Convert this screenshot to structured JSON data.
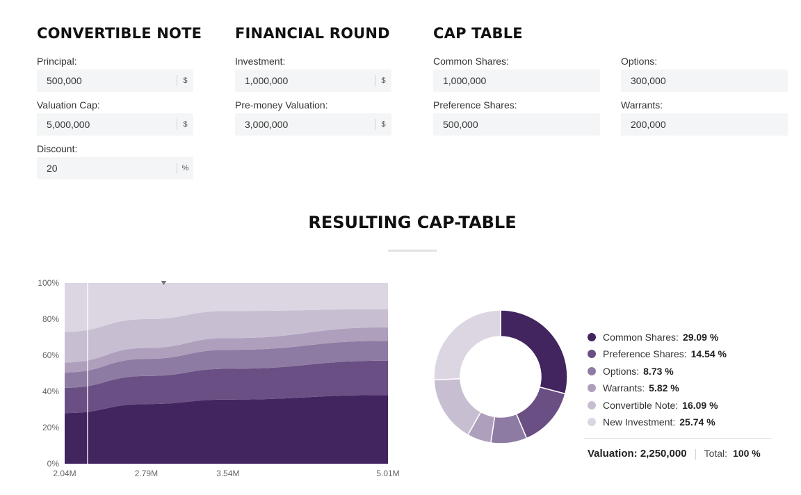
{
  "sections": {
    "convertible_note": {
      "title": "CONVERTIBLE NOTE",
      "principal": {
        "label": "Principal:",
        "value": "500,000",
        "unit": "$"
      },
      "valuation_cap": {
        "label": "Valuation Cap:",
        "value": "5,000,000",
        "unit": "$"
      },
      "discount": {
        "label": "Discount:",
        "value": "20",
        "unit": "%"
      }
    },
    "financial_round": {
      "title": "FINANCIAL ROUND",
      "investment": {
        "label": "Investment:",
        "value": "1,000,000",
        "unit": "$"
      },
      "pre_money": {
        "label": "Pre-money Valuation:",
        "value": "3,000,000",
        "unit": "$"
      }
    },
    "cap_table": {
      "title": "CAP TABLE",
      "common": {
        "label": "Common Shares:",
        "value": "1,000,000"
      },
      "preference": {
        "label": "Preference Shares:",
        "value": "500,000"
      },
      "options": {
        "label": "Options:",
        "value": "300,000"
      },
      "warrants": {
        "label": "Warrants:",
        "value": "200,000"
      }
    }
  },
  "result": {
    "title": "RESULTING CAP-TABLE",
    "legend": [
      {
        "name": "Common Shares:",
        "value": "29.09 %",
        "color": "#42245f"
      },
      {
        "name": "Preference Shares:",
        "value": "14.54 %",
        "color": "#6a4f84"
      },
      {
        "name": "Options:",
        "value": "8.73 %",
        "color": "#8e7ba3"
      },
      {
        "name": "Warrants:",
        "value": "5.82 %",
        "color": "#aea0bd"
      },
      {
        "name": "Convertible Note:",
        "value": "16.09 %",
        "color": "#c8bed2"
      },
      {
        "name": "New Investment:",
        "value": "25.74 %",
        "color": "#dcd6e2"
      }
    ],
    "valuation_label": "Valuation: 2,250,000",
    "total_label": "Total:",
    "total_value": "100 %"
  },
  "chart_data": [
    {
      "type": "area",
      "stacked": true,
      "x_ticks": [
        "2.04M",
        "2.79M",
        "3.54M",
        "5.01M"
      ],
      "y_ticks": [
        "0%",
        "20%",
        "40%",
        "60%",
        "80%",
        "100%"
      ],
      "ylim": [
        0,
        100
      ],
      "marker_x": "2.25M",
      "x": [
        2.04,
        2.79,
        3.54,
        5.01
      ],
      "series": [
        {
          "name": "Common Shares",
          "color": "#42245f",
          "values": [
            28,
            33,
            35.5,
            38
          ]
        },
        {
          "name": "Preference Shares",
          "color": "#6a4f84",
          "values": [
            14,
            15.5,
            17,
            19
          ]
        },
        {
          "name": "Options",
          "color": "#8e7ba3",
          "values": [
            8.5,
            9.5,
            10.5,
            11
          ]
        },
        {
          "name": "Warrants",
          "color": "#aea0bd",
          "values": [
            5.5,
            6,
            6.5,
            7.5
          ]
        },
        {
          "name": "Convertible Note",
          "color": "#c8bed2",
          "values": [
            17,
            16,
            15,
            10
          ]
        },
        {
          "name": "New Investment",
          "color": "#dcd6e2",
          "values": [
            27,
            20,
            15.5,
            14.5
          ]
        }
      ]
    },
    {
      "type": "pie",
      "donut": true,
      "slices": [
        {
          "name": "Common Shares",
          "value": 29.09,
          "color": "#42245f"
        },
        {
          "name": "Preference Shares",
          "value": 14.54,
          "color": "#6a4f84"
        },
        {
          "name": "Options",
          "value": 8.73,
          "color": "#8e7ba3"
        },
        {
          "name": "Warrants",
          "value": 5.82,
          "color": "#aea0bd"
        },
        {
          "name": "Convertible Note",
          "value": 16.09,
          "color": "#c8bed2"
        },
        {
          "name": "New Investment",
          "value": 25.74,
          "color": "#dcd6e2"
        }
      ]
    }
  ]
}
